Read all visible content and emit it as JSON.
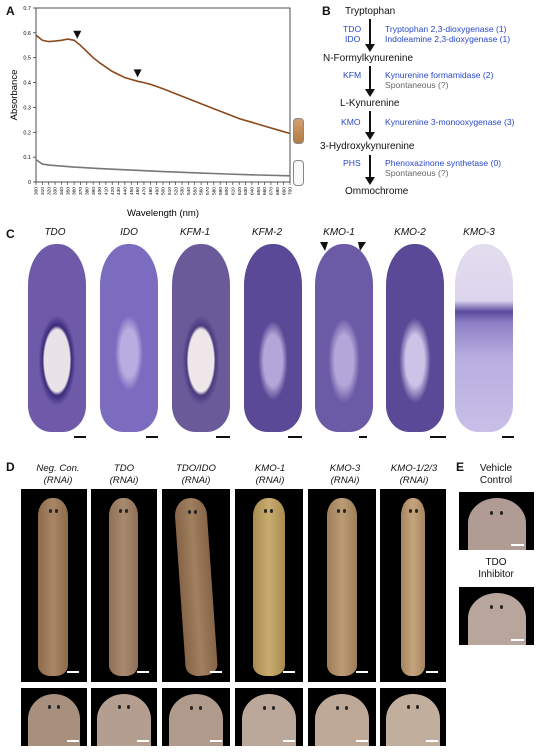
{
  "panels": {
    "a": "A",
    "b": "B",
    "c": "C",
    "d": "D",
    "e": "E"
  },
  "chart_data": {
    "type": "line",
    "xlabel": "Wavelength (nm)",
    "ylabel": "Absorbance",
    "xlim": [
      300,
      700
    ],
    "ylim": [
      0,
      0.7
    ],
    "yticks": [
      "0",
      "0.1",
      "0.2",
      "0.3",
      "0.4",
      "0.5",
      "0.6",
      "0.7"
    ],
    "xticks": [
      300,
      310,
      320,
      330,
      340,
      350,
      360,
      370,
      380,
      390,
      400,
      410,
      420,
      430,
      440,
      450,
      460,
      470,
      480,
      490,
      500,
      510,
      520,
      530,
      540,
      550,
      560,
      570,
      580,
      590,
      600,
      610,
      620,
      630,
      640,
      650,
      660,
      670,
      680,
      690,
      700
    ],
    "series": [
      {
        "color": "#8a4a1c",
        "x": [
          300,
          310,
          320,
          330,
          340,
          350,
          360,
          370,
          380,
          390,
          400,
          420,
          440,
          460,
          470,
          480,
          500,
          520,
          540,
          560,
          580,
          600,
          620,
          640,
          660,
          680,
          700
        ],
        "y": [
          0.59,
          0.57,
          0.565,
          0.567,
          0.57,
          0.575,
          0.57,
          0.55,
          0.525,
          0.5,
          0.48,
          0.445,
          0.42,
          0.405,
          0.4,
          0.393,
          0.375,
          0.355,
          0.335,
          0.315,
          0.295,
          0.275,
          0.255,
          0.24,
          0.225,
          0.21,
          0.195
        ]
      },
      {
        "color": "#777777",
        "x": [
          300,
          310,
          320,
          340,
          360,
          380,
          400,
          450,
          500,
          550,
          600,
          650,
          700
        ],
        "y": [
          0.09,
          0.072,
          0.068,
          0.064,
          0.06,
          0.057,
          0.054,
          0.048,
          0.042,
          0.037,
          0.032,
          0.028,
          0.025
        ]
      }
    ],
    "peaks_nm": [
      365,
      460
    ]
  },
  "pathway": {
    "metabolites": [
      "Tryptophan",
      "N-Formylkynurenine",
      "L-Kynurenine",
      "3-Hydroxykynurenine",
      "Ommochrome"
    ],
    "steps": [
      {
        "abbrs": [
          "TDO",
          "IDO"
        ],
        "enzymes": [
          "Tryptophan 2,3-dioxygenase (1)",
          "Indoleamine 2,3-dioxygenase (1)"
        ],
        "extra": ""
      },
      {
        "abbrs": [
          "KFM"
        ],
        "enzymes": [
          "Kynurenine formamidase (2)"
        ],
        "extra": "Spontaneous (?)"
      },
      {
        "abbrs": [
          "KMO"
        ],
        "enzymes": [
          "Kynurenine 3-monooxygenase (3)"
        ],
        "extra": ""
      },
      {
        "abbrs": [
          "PHS"
        ],
        "enzymes": [
          "Phenoxazinone synthetase (0)"
        ],
        "extra": "Spontaneous (?)"
      }
    ]
  },
  "panel_c": {
    "genes": [
      "TDO",
      "IDO",
      "KFM-1",
      "KFM-2",
      "KMO-1",
      "KMO-2",
      "KMO-3"
    ]
  },
  "panel_d": {
    "conditions": [
      [
        "Neg. Con.",
        "(RNAi)"
      ],
      [
        "TDO",
        "(RNAi)"
      ],
      [
        "TDO/IDO",
        "(RNAi)"
      ],
      [
        "KMO-1",
        "(RNAi)"
      ],
      [
        "KMO-3",
        "(RNAi)"
      ],
      [
        "KMO-1/2/3",
        "(RNAi)"
      ]
    ]
  },
  "panel_e": {
    "labels": [
      [
        "Vehicle",
        "Control"
      ],
      [
        "TDO",
        "Inhibitor"
      ]
    ]
  },
  "colors": {
    "stain": "#3a2a7a",
    "stain_light": "#8e80c4",
    "spectrum_brown": "#8a4a1c",
    "spectrum_gray": "#777777",
    "enzyme_blue": "#2747c9"
  }
}
